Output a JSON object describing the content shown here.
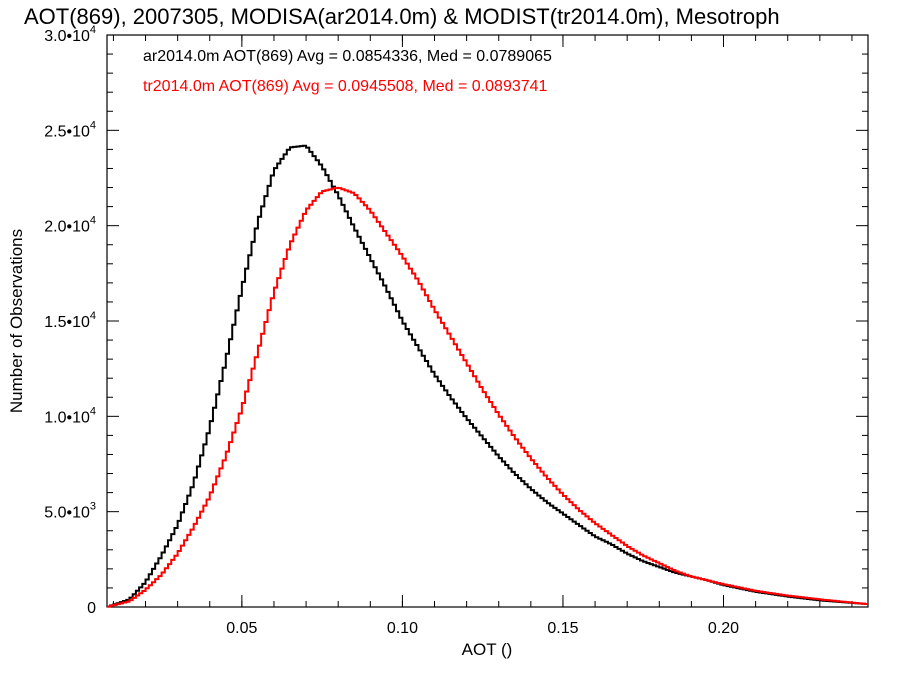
{
  "chart_data": {
    "type": "line",
    "title": "AOT(869), 2007305, MODISA(ar2014.0m) & MODIST(tr2014.0m), Mesotroph",
    "xlabel": "AOT ()",
    "ylabel": "Number of Observations",
    "xlim": [
      0.008,
      0.245
    ],
    "ylim": [
      0,
      30000
    ],
    "x_ticks": [
      {
        "value": 0.05,
        "label": "0.05"
      },
      {
        "value": 0.1,
        "label": "0.10"
      },
      {
        "value": 0.15,
        "label": "0.15"
      },
      {
        "value": 0.2,
        "label": "0.20"
      }
    ],
    "y_ticks": [
      {
        "value": 0,
        "mantissa": "0",
        "exponent": ""
      },
      {
        "value": 5000,
        "mantissa": "5.0•10",
        "exponent": "3"
      },
      {
        "value": 10000,
        "mantissa": "1.0•10",
        "exponent": "4"
      },
      {
        "value": 15000,
        "mantissa": "1.5•10",
        "exponent": "4"
      },
      {
        "value": 20000,
        "mantissa": "2.0•10",
        "exponent": "4"
      },
      {
        "value": 25000,
        "mantissa": "2.5•10",
        "exponent": "4"
      },
      {
        "value": 30000,
        "mantissa": "3.0•10",
        "exponent": "4"
      }
    ],
    "legend_placement": "top-left",
    "series": [
      {
        "name": "ar2014.0m AOT(869) Avg = 0.0854336, Med = 0.0789065",
        "color": "#000000",
        "x": [
          0.008,
          0.015,
          0.02,
          0.025,
          0.03,
          0.035,
          0.04,
          0.045,
          0.05,
          0.055,
          0.06,
          0.065,
          0.07,
          0.075,
          0.08,
          0.085,
          0.09,
          0.095,
          0.1,
          0.105,
          0.11,
          0.115,
          0.12,
          0.125,
          0.13,
          0.135,
          0.14,
          0.145,
          0.15,
          0.155,
          0.16,
          0.165,
          0.17,
          0.175,
          0.18,
          0.185,
          0.19,
          0.195,
          0.2,
          0.21,
          0.22,
          0.23,
          0.245
        ],
        "y": [
          0,
          400,
          1300,
          2700,
          4300,
          6500,
          9400,
          12900,
          16700,
          20200,
          22900,
          24100,
          24200,
          23100,
          21600,
          19900,
          18300,
          16700,
          15000,
          13600,
          12200,
          11000,
          9900,
          8900,
          7900,
          7000,
          6200,
          5500,
          4900,
          4300,
          3700,
          3300,
          2800,
          2400,
          2100,
          1800,
          1600,
          1400,
          1150,
          800,
          550,
          350,
          150
        ]
      },
      {
        "name": "tr2014.0m AOT(869) Avg = 0.0945508, Med = 0.0893741",
        "color": "#ff0000",
        "x": [
          0.008,
          0.015,
          0.02,
          0.025,
          0.03,
          0.035,
          0.04,
          0.045,
          0.05,
          0.055,
          0.06,
          0.065,
          0.07,
          0.075,
          0.08,
          0.085,
          0.09,
          0.095,
          0.1,
          0.105,
          0.11,
          0.115,
          0.12,
          0.125,
          0.13,
          0.135,
          0.14,
          0.145,
          0.15,
          0.155,
          0.16,
          0.165,
          0.17,
          0.175,
          0.18,
          0.185,
          0.19,
          0.195,
          0.2,
          0.21,
          0.22,
          0.23,
          0.245
        ],
        "y": [
          0,
          300,
          900,
          1700,
          2800,
          4200,
          5800,
          7900,
          10400,
          13400,
          16500,
          19000,
          20800,
          21800,
          22000,
          21700,
          20800,
          19600,
          18400,
          17100,
          15600,
          14200,
          12800,
          11400,
          10100,
          8900,
          7800,
          6800,
          5900,
          5100,
          4400,
          3800,
          3200,
          2700,
          2300,
          1900,
          1600,
          1400,
          1200,
          850,
          600,
          400,
          150
        ]
      }
    ]
  }
}
